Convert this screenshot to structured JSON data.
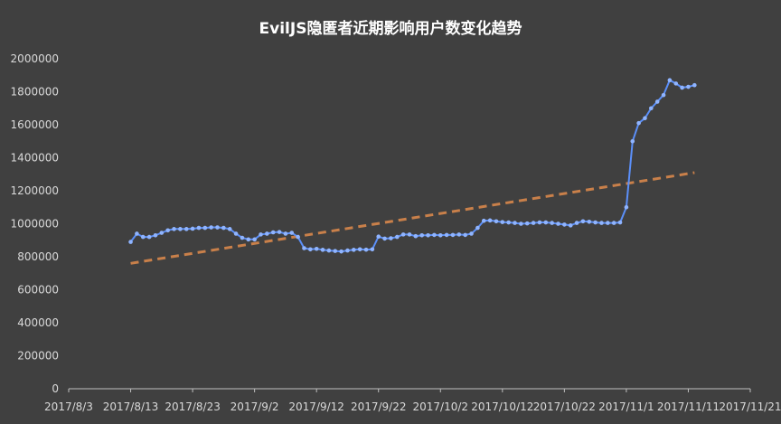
{
  "chart_data": {
    "type": "line",
    "title": "EvilJS隐匿者近期影响用户数变化趋势",
    "xlabel": "",
    "ylabel": "",
    "ylim": [
      0,
      2000000
    ],
    "yticks": [
      0,
      200000,
      400000,
      600000,
      800000,
      1000000,
      1200000,
      1400000,
      1600000,
      1800000,
      2000000
    ],
    "yticklabels": [
      "0",
      "200000",
      "400000",
      "600000",
      "800000",
      "1000000",
      "1200000",
      "1400000",
      "1600000",
      "1800000",
      "2000000"
    ],
    "xlim": [
      "2017-08-03",
      "2017-11-21"
    ],
    "xticks": [
      "2017-08-03",
      "2017-08-13",
      "2017-08-23",
      "2017-09-02",
      "2017-09-12",
      "2017-09-22",
      "2017-10-02",
      "2017-10-12",
      "2017-10-22",
      "2017-11-01",
      "2017-11-11",
      "2017-11-21"
    ],
    "xticklabels": [
      "2017/8/3",
      "2017/8/13",
      "2017/8/23",
      "2017/9/2",
      "2017/9/12",
      "2017/9/22",
      "2017/10/2",
      "2017/10/12",
      "2017/10/22",
      "2017/11/1",
      "2017/11/11",
      "2017/11/21"
    ],
    "grid": false,
    "colors": {
      "line": "#5b8ff9",
      "marker": "#8fb4ff",
      "trend": "#c9804a",
      "axis": "#bfbfbf",
      "background": "#404040"
    },
    "series": [
      {
        "line_style": "solid-with-markers",
        "x": [
          "2017-08-13",
          "2017-08-14",
          "2017-08-15",
          "2017-08-16",
          "2017-08-17",
          "2017-08-18",
          "2017-08-19",
          "2017-08-20",
          "2017-08-21",
          "2017-08-22",
          "2017-08-23",
          "2017-08-24",
          "2017-08-25",
          "2017-08-26",
          "2017-08-27",
          "2017-08-28",
          "2017-08-29",
          "2017-08-30",
          "2017-08-31",
          "2017-09-01",
          "2017-09-02",
          "2017-09-03",
          "2017-09-04",
          "2017-09-05",
          "2017-09-06",
          "2017-09-07",
          "2017-09-08",
          "2017-09-09",
          "2017-09-10",
          "2017-09-11",
          "2017-09-12",
          "2017-09-13",
          "2017-09-14",
          "2017-09-15",
          "2017-09-16",
          "2017-09-17",
          "2017-09-18",
          "2017-09-19",
          "2017-09-20",
          "2017-09-21",
          "2017-09-22",
          "2017-09-23",
          "2017-09-24",
          "2017-09-25",
          "2017-09-26",
          "2017-09-27",
          "2017-09-28",
          "2017-09-29",
          "2017-09-30",
          "2017-10-01",
          "2017-10-02",
          "2017-10-03",
          "2017-10-04",
          "2017-10-05",
          "2017-10-06",
          "2017-10-07",
          "2017-10-08",
          "2017-10-09",
          "2017-10-10",
          "2017-10-11",
          "2017-10-12",
          "2017-10-13",
          "2017-10-14",
          "2017-10-15",
          "2017-10-16",
          "2017-10-17",
          "2017-10-18",
          "2017-10-19",
          "2017-10-20",
          "2017-10-21",
          "2017-10-22",
          "2017-10-23",
          "2017-10-24",
          "2017-10-25",
          "2017-10-26",
          "2017-10-27",
          "2017-10-28",
          "2017-10-29",
          "2017-10-30",
          "2017-10-31",
          "2017-11-01",
          "2017-11-02",
          "2017-11-03",
          "2017-11-04",
          "2017-11-05",
          "2017-11-06",
          "2017-11-07",
          "2017-11-08",
          "2017-11-09",
          "2017-11-10",
          "2017-11-11",
          "2017-11-12"
        ],
        "values": [
          890000,
          940000,
          920000,
          920000,
          930000,
          945000,
          960000,
          968000,
          968000,
          968000,
          970000,
          975000,
          975000,
          978000,
          978000,
          975000,
          968000,
          940000,
          915000,
          905000,
          905000,
          935000,
          940000,
          948000,
          950000,
          940000,
          945000,
          920000,
          852000,
          845000,
          848000,
          842000,
          838000,
          835000,
          832000,
          838000,
          842000,
          845000,
          843000,
          845000,
          922000,
          910000,
          912000,
          920000,
          935000,
          935000,
          925000,
          930000,
          930000,
          932000,
          930000,
          932000,
          932000,
          935000,
          932000,
          940000,
          975000,
          1018000,
          1020000,
          1015000,
          1010000,
          1008000,
          1005000,
          1000000,
          1002000,
          1005000,
          1008000,
          1008000,
          1005000,
          1000000,
          995000,
          990000,
          1005000,
          1015000,
          1012000,
          1008000,
          1005000,
          1005000,
          1005000,
          1008000,
          1100000,
          1500000,
          1610000,
          1640000,
          1700000,
          1740000,
          1780000,
          1870000,
          1850000,
          1825000,
          1830000,
          1840000
        ]
      },
      {
        "line_style": "dashed-trendline",
        "x": [
          "2017-08-13",
          "2017-11-12"
        ],
        "values": [
          760000,
          1310000
        ]
      }
    ]
  }
}
